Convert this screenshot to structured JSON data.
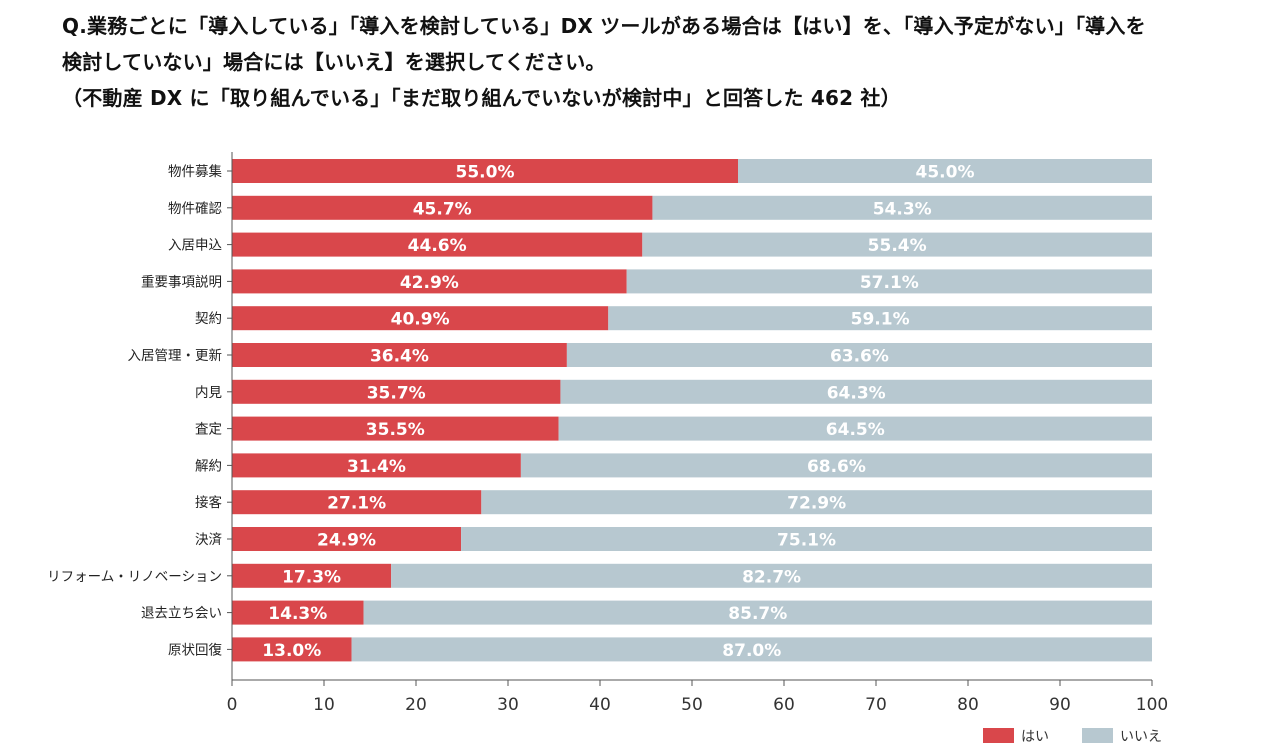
{
  "question": {
    "line1": "Q.業務ごとに「導入している」「導入を検討している」DX ツールがある場合は【はい】を、「導入予定がない」「導入を",
    "line2": "検討していない」場合には【いいえ】を選択してください。",
    "line3": "（不動産 DX に「取り組んでいる」「まだ取り組んでいないが検討中」と回答した 462 社）"
  },
  "colors": {
    "yes": "#d9474b",
    "no": "#b7c8d0",
    "axis": "#555555",
    "label_text": "#222222",
    "bar_text": "#ffffff"
  },
  "chart_data": {
    "type": "bar",
    "orientation": "horizontal",
    "stacked": true,
    "title": "",
    "xlabel": "",
    "ylabel": "",
    "xlim": [
      0,
      100
    ],
    "ticks": [
      0,
      10,
      20,
      30,
      40,
      50,
      60,
      70,
      80,
      90,
      100
    ],
    "grid": false,
    "legend_position": "bottom-right",
    "categories": [
      "物件募集",
      "物件確認",
      "入居申込",
      "重要事項説明",
      "契約",
      "入居管理・更新",
      "内見",
      "査定",
      "解約",
      "接客",
      "決済",
      "リフォーム・リノベーション",
      "退去立ち会い",
      "原状回復"
    ],
    "series": [
      {
        "name": "はい",
        "values": [
          55.0,
          45.7,
          44.6,
          42.9,
          40.9,
          36.4,
          35.7,
          35.5,
          31.4,
          27.1,
          24.9,
          17.3,
          14.3,
          13.0
        ],
        "labels": [
          "55.0%",
          "45.7%",
          "44.6%",
          "42.9%",
          "40.9%",
          "36.4%",
          "35.7%",
          "35.5%",
          "31.4%",
          "27.1%",
          "24.9%",
          "17.3%",
          "14.3%",
          "13.0%"
        ]
      },
      {
        "name": "いいえ",
        "values": [
          45.0,
          54.3,
          55.4,
          57.1,
          59.1,
          63.6,
          64.3,
          64.5,
          68.6,
          72.9,
          75.1,
          82.7,
          85.7,
          87.0
        ],
        "labels": [
          "45.0%",
          "54.3%",
          "55.4%",
          "57.1%",
          "59.1%",
          "63.6%",
          "64.3%",
          "64.5%",
          "68.6%",
          "72.9%",
          "75.1%",
          "82.7%",
          "85.7%",
          "87.0%"
        ]
      }
    ]
  }
}
